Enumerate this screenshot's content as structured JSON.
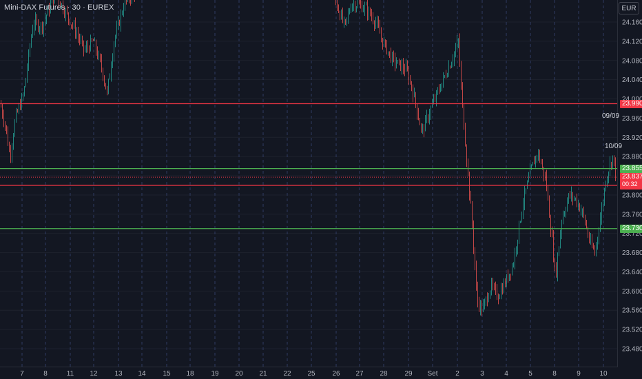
{
  "header": {
    "title": "Mini-DAX Futures · 30 · EUREX"
  },
  "currency": {
    "label": "EUR"
  },
  "chart_data": {
    "type": "candlestick",
    "price_axis": {
      "ticks": [
        "24.160",
        "24.120",
        "24.080",
        "24.040",
        "24.000",
        "23.960",
        "23.920",
        "23.880",
        "23.840",
        "23.800",
        "23.760",
        "23.720",
        "23.680",
        "23.640",
        "23.600",
        "23.560",
        "23.520",
        "23.480"
      ]
    },
    "time_axis": {
      "ticks": [
        "7",
        "8",
        "11",
        "12",
        "13",
        "14",
        "15",
        "18",
        "19",
        "20",
        "21",
        "22",
        "25",
        "26",
        "27",
        "28",
        "29",
        "Set",
        "2",
        "3",
        "4",
        "5",
        "8",
        "9",
        "10"
      ]
    },
    "price_lines": [
      {
        "label": "23.990",
        "value": 23990,
        "color": "#f23645"
      },
      {
        "label": "23.855",
        "value": 23855,
        "color": "#4caf50"
      },
      {
        "label": "23.820",
        "value": 23820,
        "color": "#f23645"
      },
      {
        "label": "23.730",
        "value": 23730,
        "color": "#4caf50"
      }
    ],
    "current_price": {
      "label": "23.837",
      "value": 23837,
      "countdown": "00:32",
      "color": "#f23645"
    },
    "session_labels": [
      "09/09",
      "10/09"
    ],
    "up_color": "#26a69a",
    "down_color": "#ef5350",
    "grid": true
  }
}
